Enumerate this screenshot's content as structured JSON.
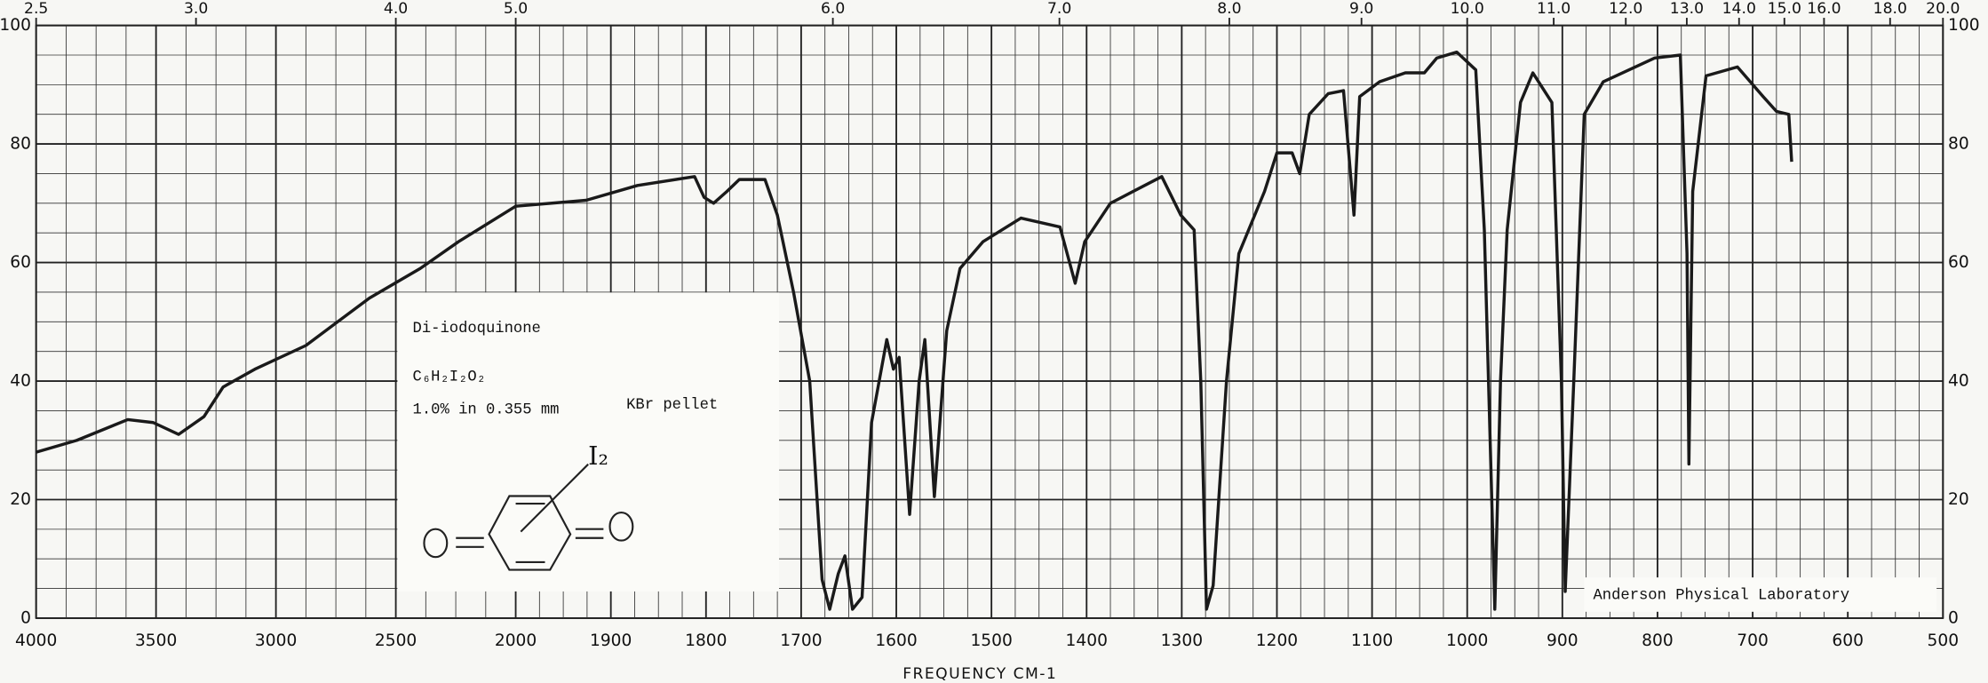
{
  "chart_data": {
    "type": "line",
    "xlabel": "FREQUENCY CM-1",
    "x": [
      4000,
      3830,
      3618,
      3512,
      3406,
      3300,
      3220,
      3088,
      2875,
      2610,
      2398,
      2239,
      2000,
      1926,
      1872,
      1812,
      1802,
      1792,
      1778,
      1765,
      1738,
      1725,
      1708,
      1691,
      1678,
      1670,
      1661,
      1654,
      1646,
      1636,
      1626,
      1610,
      1603,
      1597,
      1586,
      1576,
      1570,
      1560,
      1547,
      1533,
      1509,
      1469,
      1428,
      1412,
      1402,
      1375,
      1321,
      1301,
      1287,
      1280,
      1274,
      1267,
      1253,
      1240,
      1213,
      1200,
      1184,
      1176,
      1166,
      1146,
      1130,
      1119,
      1113,
      1092,
      1065,
      1045,
      1032,
      1011,
      991,
      982,
      971,
      965,
      958,
      944,
      931,
      911,
      901,
      897,
      888,
      877,
      857,
      830,
      803,
      776,
      769,
      767,
      763,
      749,
      716,
      689,
      675,
      662,
      659
    ],
    "values": [
      28,
      30,
      33.5,
      33,
      31,
      34,
      39,
      42,
      46,
      54,
      59,
      63.5,
      69.5,
      70.5,
      73,
      74.5,
      71,
      70,
      72,
      74,
      74,
      68,
      55,
      40,
      6.5,
      1.5,
      7.5,
      10.5,
      1.5,
      3.5,
      33,
      47,
      42,
      44,
      17.5,
      40,
      47,
      20.5,
      48.5,
      59,
      63.5,
      67.5,
      66,
      56.5,
      63.5,
      70,
      74.5,
      68,
      65.5,
      40,
      1.5,
      5.5,
      40,
      61.5,
      72,
      78.5,
      78.5,
      75,
      85,
      88.5,
      89,
      68,
      88,
      90.5,
      92,
      92,
      94.5,
      95.5,
      92.5,
      65.5,
      1.5,
      40,
      65.5,
      87,
      92,
      87,
      40,
      4.5,
      40,
      85,
      90.5,
      92.5,
      94.5,
      95,
      61.5,
      26,
      72,
      91.5,
      93,
      88,
      85.5,
      85,
      77
    ],
    "color": "#1a1a1a",
    "xlim": [
      4000,
      500
    ],
    "xticks": [
      4000,
      3500,
      3000,
      2500,
      2000,
      1900,
      1800,
      1700,
      1600,
      1500,
      1400,
      1300,
      1200,
      1100,
      1000,
      900,
      800,
      700,
      600,
      500
    ],
    "xticks_top": [
      2.5,
      {
        "value": 3,
        "label": "3.0"
      },
      {
        "value": 4,
        "label": "4.0"
      },
      {
        "value": 5,
        "label": "5.0"
      },
      {
        "value": 6,
        "label": "6.0"
      },
      {
        "value": 7,
        "label": "7.0"
      },
      {
        "value": 8,
        "label": "8.0"
      },
      {
        "value": 9,
        "label": "9.0"
      },
      {
        "value": 10,
        "label": "10.0"
      },
      {
        "value": 11,
        "label": "11.0"
      },
      {
        "value": 12,
        "label": "12.0"
      },
      {
        "value": 13,
        "label": "13.0"
      },
      {
        "value": 14,
        "label": "14.0"
      },
      {
        "value": 15,
        "label": "15.0"
      },
      {
        "value": 16,
        "label": "16.0"
      },
      {
        "value": 18,
        "label": "18.0"
      },
      {
        "value": 20,
        "label": "20.0"
      }
    ],
    "ylim": [
      0,
      100
    ],
    "yticks": [
      0,
      20,
      40,
      60,
      80,
      100
    ],
    "grid": true,
    "annotations": {
      "compound": "Di-iodoquinone",
      "formula": "C₆H₂I₂O₂",
      "concentration": "1.0% in 0.355 mm",
      "medium": "KBr pellet",
      "substituent": "I₂",
      "laboratory": "Anderson Physical Laboratory"
    }
  }
}
